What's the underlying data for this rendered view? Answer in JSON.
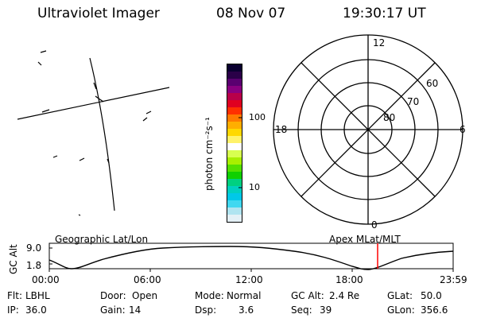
{
  "header": {
    "title": "Ultraviolet Imager",
    "date": "08 Nov 07",
    "time": "19:30:17 UT"
  },
  "colorbar": {
    "label": "photon cm⁻²s⁻¹",
    "ticks": [
      "100",
      "10"
    ],
    "colors": [
      "#0a0030",
      "#2a0048",
      "#5a0070",
      "#8a0080",
      "#b8004a",
      "#e00020",
      "#ff3000",
      "#ff7a00",
      "#ffae00",
      "#ffd800",
      "#fff26a",
      "#ffffff",
      "#d8ff50",
      "#a8f000",
      "#54e000",
      "#10d000",
      "#00d080",
      "#00d0c0",
      "#00c8e8",
      "#40d8f0",
      "#b0e4f0",
      "#e4f0f6"
    ]
  },
  "polar": {
    "mlt_labels": [
      "12",
      "6",
      "0",
      "18"
    ],
    "mlat_labels": [
      "60",
      "70",
      "80"
    ]
  },
  "orbit": {
    "left_label": "Geographic Lat/Lon",
    "right_label": "Apex MLat/MLT",
    "ylabel": "GC Alt",
    "y_high": "9.0",
    "y_low": "1.8",
    "x_ticks": [
      "00:00",
      "06:00",
      "12:00",
      "18:00",
      "23:59"
    ],
    "marker_color": "#ff0000"
  },
  "info": [
    {
      "label": "Flt:",
      "value": "LBHL"
    },
    {
      "label": "Door:",
      "value": "Open"
    },
    {
      "label": "Mode:",
      "value": "Normal"
    },
    {
      "label": "GC Alt:",
      "value": "2.4 Re"
    },
    {
      "label": "GLat:",
      "value": "50.0"
    },
    {
      "label": "IP:",
      "value": "36.0"
    },
    {
      "label": "Gain:",
      "value": "14"
    },
    {
      "label": "Dsp:",
      "value": "3.6"
    },
    {
      "label": "Seq:",
      "value": "39"
    },
    {
      "label": "GLon:",
      "value": "356.6"
    }
  ]
}
